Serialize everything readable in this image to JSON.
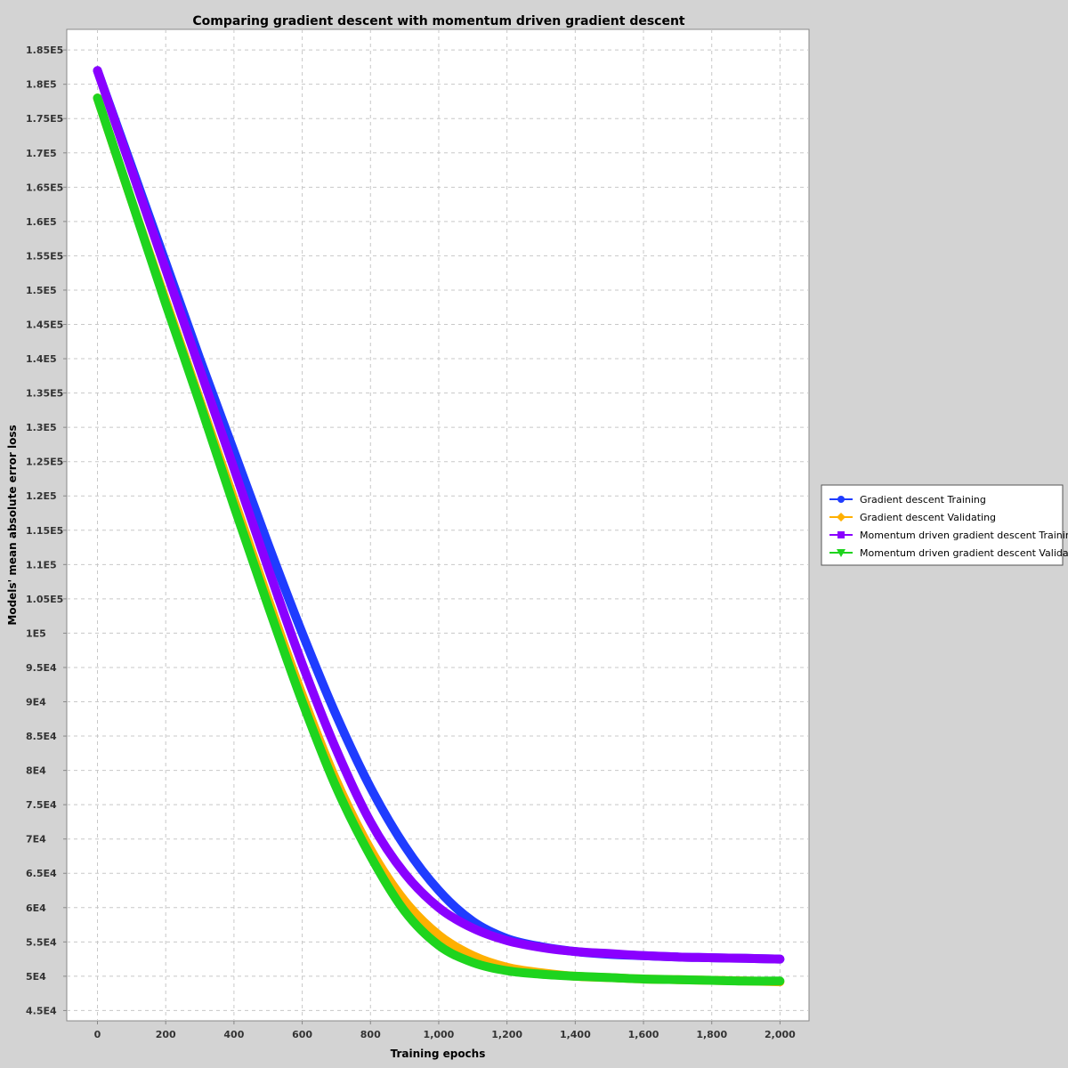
{
  "chart_data": {
    "type": "line",
    "title": "Comparing gradient descent with momentum driven gradient descent",
    "xlabel": "Training epochs",
    "ylabel": "Models' mean absolute error loss",
    "xlim": [
      -90,
      2085
    ],
    "ylim": [
      43500,
      188000
    ],
    "x_ticks": [
      0,
      200,
      400,
      600,
      800,
      1000,
      1200,
      1400,
      1600,
      1800,
      2000
    ],
    "x_tick_labels": [
      "0",
      "200",
      "400",
      "600",
      "800",
      "1,000",
      "1,200",
      "1,400",
      "1,600",
      "1,800",
      "2,000"
    ],
    "y_ticks": [
      45000,
      50000,
      55000,
      60000,
      65000,
      70000,
      75000,
      80000,
      85000,
      90000,
      95000,
      100000,
      105000,
      110000,
      115000,
      120000,
      125000,
      130000,
      135000,
      140000,
      145000,
      150000,
      155000,
      160000,
      165000,
      170000,
      175000,
      180000,
      185000
    ],
    "y_tick_labels": [
      "4.5E4",
      "5E4",
      "5.5E4",
      "6E4",
      "6.5E4",
      "7E4",
      "7.5E4",
      "8E4",
      "8.5E4",
      "9E4",
      "9.5E4",
      "1E5",
      "1.05E5",
      "1.1E5",
      "1.15E5",
      "1.2E5",
      "1.25E5",
      "1.3E5",
      "1.35E5",
      "1.4E5",
      "1.45E5",
      "1.5E5",
      "1.55E5",
      "1.6E5",
      "1.65E5",
      "1.7E5",
      "1.75E5",
      "1.8E5",
      "1.85E5"
    ],
    "grid": true,
    "legend_position": "right",
    "x": [
      0,
      100,
      200,
      300,
      400,
      500,
      600,
      700,
      800,
      900,
      1000,
      1100,
      1200,
      1300,
      1400,
      1500,
      1600,
      1700,
      1800,
      1900,
      2000
    ],
    "series": [
      {
        "name": "Gradient descent Training",
        "color": "#1f3cff",
        "marker": "circle",
        "values": [
          182000,
          168000,
          154000,
          140000,
          126500,
          113000,
          100000,
          88000,
          77500,
          69000,
          62500,
          58000,
          55500,
          54300,
          53600,
          53200,
          53000,
          52800,
          52700,
          52600,
          52500
        ]
      },
      {
        "name": "Gradient descent Validating",
        "color": "#ffb000",
        "marker": "diamond",
        "values": [
          178000,
          163000,
          148500,
          134000,
          119500,
          105000,
          91000,
          78500,
          68500,
          61000,
          56000,
          53000,
          51300,
          50500,
          50000,
          49800,
          49600,
          49500,
          49400,
          49300,
          49200
        ]
      },
      {
        "name": "Momentum driven gradient descent Training",
        "color": "#8a00ff",
        "marker": "square",
        "values": [
          182000,
          167500,
          153000,
          138500,
          124000,
          109500,
          95500,
          83000,
          72500,
          65000,
          60000,
          57000,
          55200,
          54200,
          53600,
          53300,
          53000,
          52800,
          52700,
          52600,
          52500
        ]
      },
      {
        "name": "Momentum driven gradient descent Validating",
        "color": "#1ed41e",
        "marker": "triangle-down",
        "values": [
          178000,
          163000,
          148000,
          133500,
          118500,
          104000,
          90000,
          77500,
          67500,
          59500,
          54500,
          52000,
          50800,
          50300,
          50000,
          49800,
          49600,
          49500,
          49400,
          49300,
          49300
        ]
      }
    ]
  }
}
